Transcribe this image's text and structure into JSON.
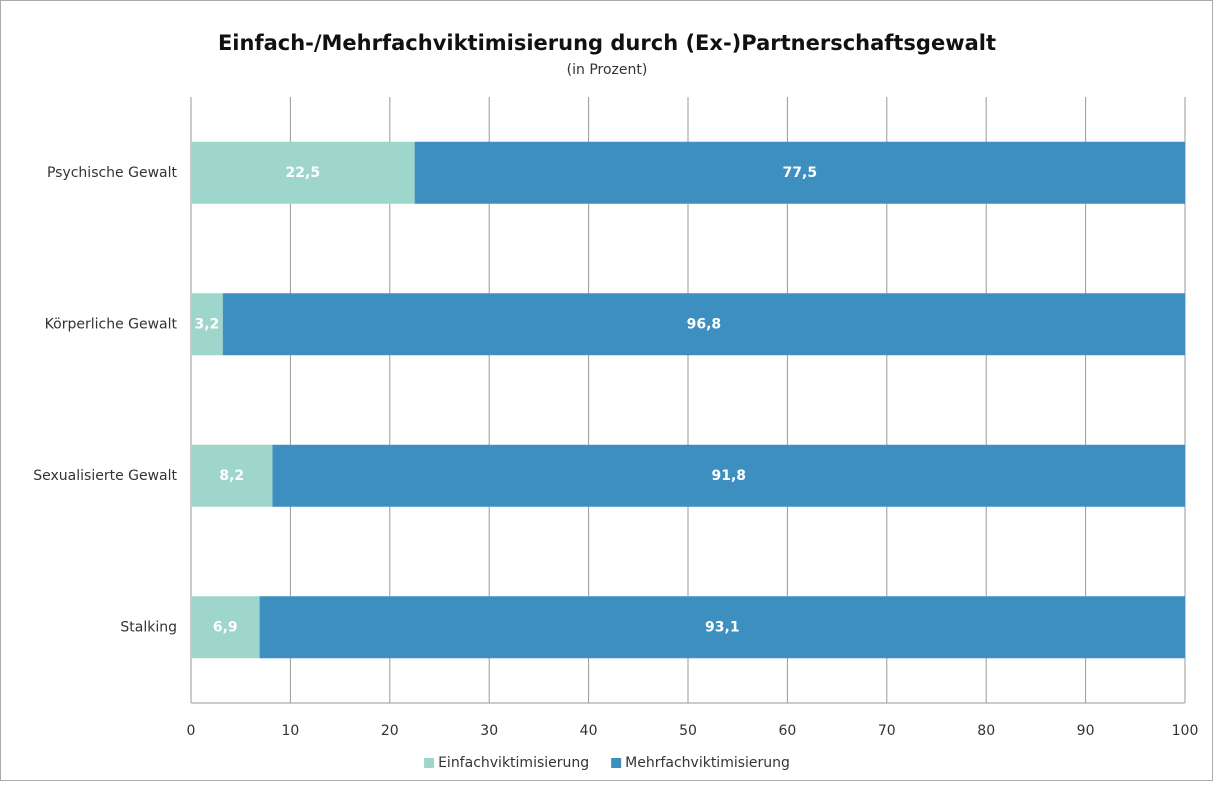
{
  "chart_data": {
    "type": "bar",
    "orientation": "horizontal",
    "stacked": true,
    "title": "Einfach-/Mehrfachviktimisierung durch (Ex-)Partnerschaftsgewalt",
    "subtitle": "(in Prozent)",
    "categories": [
      "Psychische Gewalt",
      "Körperliche Gewalt",
      "Sexualisierte Gewalt",
      "Stalking"
    ],
    "series": [
      {
        "name": "Einfachviktimisierung",
        "color": "#9fd6cb",
        "values": [
          22.5,
          3.2,
          8.2,
          6.9
        ],
        "value_labels": [
          "22,5",
          "3,2",
          "8,2",
          "6,9"
        ]
      },
      {
        "name": "Mehrfachviktimisierung",
        "color": "#3d8fc0",
        "values": [
          77.5,
          96.8,
          91.8,
          93.1
        ],
        "value_labels": [
          "77,5",
          "96,8",
          "91,8",
          "93,1"
        ]
      }
    ],
    "xlim": [
      0,
      100
    ],
    "xticks": [
      0,
      10,
      20,
      30,
      40,
      50,
      60,
      70,
      80,
      90,
      100
    ],
    "grid": true,
    "legend": "bottom"
  }
}
